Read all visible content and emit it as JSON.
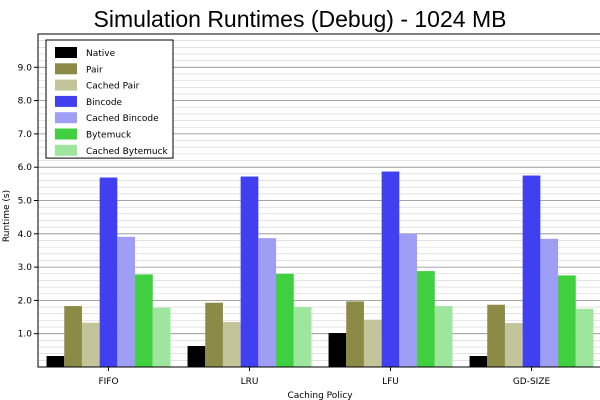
{
  "chart_data": {
    "type": "bar",
    "title": "Simulation Runtimes (Debug) - 1024 MB",
    "xlabel": "Caching Policy",
    "ylabel": "Runtime (s)",
    "ylim": [
      0,
      10
    ],
    "yticks": [
      1.0,
      2.0,
      3.0,
      4.0,
      5.0,
      6.0,
      7.0,
      8.0,
      9.0
    ],
    "ytick_labels": [
      "1.0",
      "2.0",
      "3.0",
      "4.0",
      "5.0",
      "6.0",
      "7.0",
      "8.0",
      "9.0"
    ],
    "grid": "on",
    "legend_placement": "top-left",
    "categories": [
      "FIFO",
      "LRU",
      "LFU",
      "GD-SIZE"
    ],
    "series": [
      {
        "name": "Native",
        "color": "#000000",
        "values": [
          0.33,
          0.63,
          1.02,
          0.33
        ]
      },
      {
        "name": "Pair",
        "color": "#8b8b45",
        "values": [
          1.83,
          1.93,
          1.97,
          1.87
        ]
      },
      {
        "name": "Cached Pair",
        "color": "#c4c49a",
        "values": [
          1.33,
          1.35,
          1.42,
          1.32
        ]
      },
      {
        "name": "Bincode",
        "color": "#4040f0",
        "values": [
          5.69,
          5.72,
          5.87,
          5.75
        ]
      },
      {
        "name": "Cached Bincode",
        "color": "#9e9ef5",
        "values": [
          3.91,
          3.87,
          4.0,
          3.85
        ]
      },
      {
        "name": "Bytemuck",
        "color": "#3fcf3f",
        "values": [
          2.78,
          2.8,
          2.88,
          2.75
        ]
      },
      {
        "name": "Cached Bytemuck",
        "color": "#9ee59e",
        "values": [
          1.78,
          1.8,
          1.83,
          1.75
        ]
      }
    ]
  }
}
